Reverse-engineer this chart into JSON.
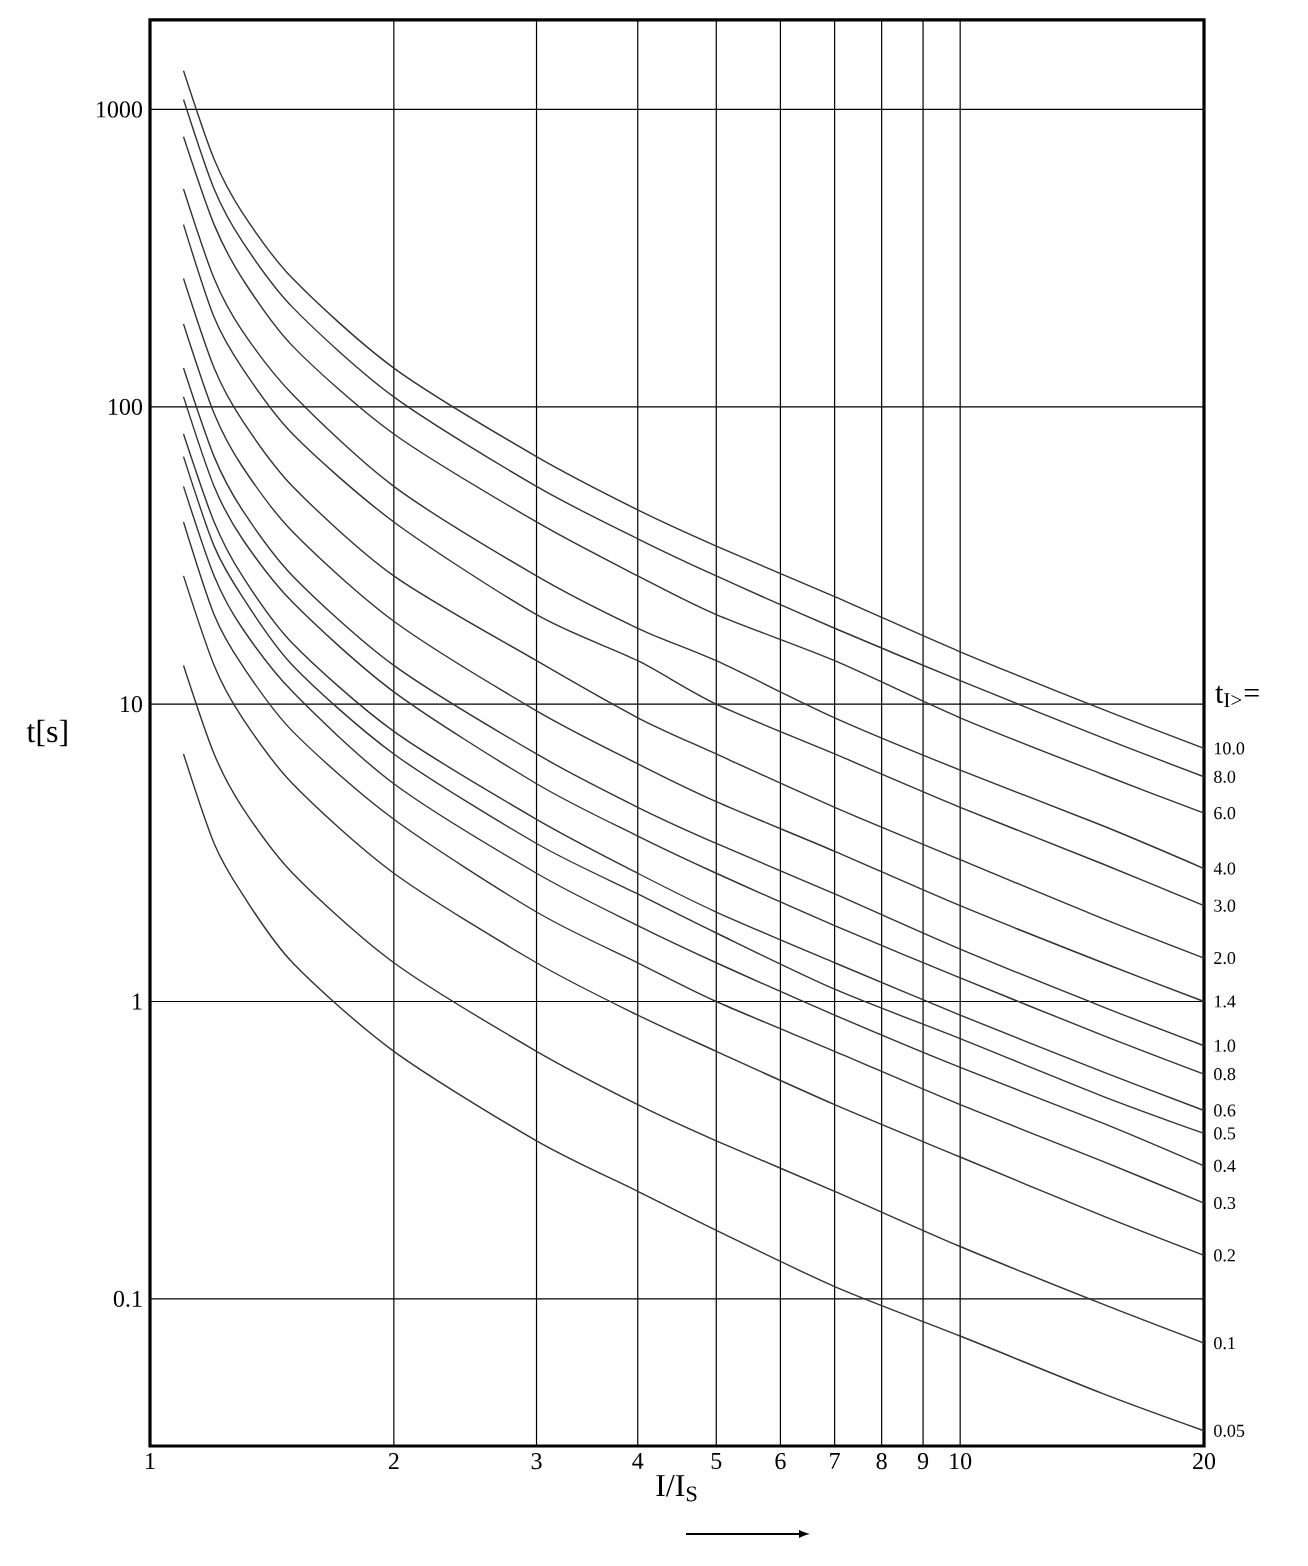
{
  "chart_data": {
    "type": "line",
    "xlabel": "I/I$_{S}$",
    "ylabel": "t[s]",
    "legend_title": "t$_{I>}$=",
    "log": "xy",
    "grid": true,
    "marker": "none",
    "line_style": "solid",
    "legend": false,
    "x": [
      1.1,
      1.2,
      1.3,
      1.5,
      2,
      3,
      4,
      5,
      7,
      10,
      15,
      20
    ],
    "xlim": [
      1,
      20
    ],
    "ylim": [
      0.032,
      2000
    ],
    "xticks": [
      1,
      2,
      3,
      4,
      5,
      6,
      7,
      8,
      9,
      10,
      20
    ],
    "yticks": [
      0.1,
      1,
      10,
      100,
      1000
    ],
    "series": [
      {
        "name": "10.0",
        "color": "#333333",
        "values": [
          1350,
          680,
          450,
          270,
          135,
          68,
          45,
          34,
          23,
          15,
          9.6,
          7.1
        ]
      },
      {
        "name": "8.0",
        "color": "#333333",
        "values": [
          1080,
          540,
          360,
          216,
          108,
          54,
          36,
          27,
          18,
          12,
          7.7,
          5.7
        ]
      },
      {
        "name": "6.0",
        "color": "#333333",
        "values": [
          810,
          410,
          270,
          160,
          81,
          41,
          27,
          20,
          14,
          9.0,
          5.8,
          4.3
        ]
      },
      {
        "name": "4.0",
        "color": "#333333",
        "values": [
          540,
          270,
          180,
          110,
          54,
          27,
          18,
          14,
          9.0,
          6.0,
          3.9,
          2.8
        ]
      },
      {
        "name": "3.0",
        "color": "#333333",
        "values": [
          410,
          200,
          135,
          81,
          41,
          20,
          14,
          10,
          6.8,
          4.5,
          2.9,
          2.1
        ]
      },
      {
        "name": "2.0",
        "color": "#333333",
        "values": [
          270,
          135,
          90,
          54,
          27,
          14,
          9.0,
          6.8,
          4.5,
          3.0,
          1.9,
          1.4
        ]
      },
      {
        "name": "1.4",
        "color": "#333333",
        "values": [
          190,
          95,
          63,
          38,
          19,
          9.5,
          6.3,
          4.7,
          3.2,
          2.1,
          1.35,
          1.0
        ]
      },
      {
        "name": "1.0",
        "color": "#333333",
        "values": [
          135,
          68,
          45,
          27,
          13.5,
          6.8,
          4.5,
          3.4,
          2.3,
          1.5,
          0.96,
          0.71
        ]
      },
      {
        "name": "0.8",
        "color": "#333333",
        "values": [
          108,
          54,
          36,
          22,
          11,
          5.4,
          3.6,
          2.7,
          1.8,
          1.2,
          0.77,
          0.57
        ]
      },
      {
        "name": "0.6",
        "color": "#333333",
        "values": [
          81,
          41,
          27,
          16,
          8.1,
          4.1,
          2.7,
          2.0,
          1.35,
          0.9,
          0.58,
          0.43
        ]
      },
      {
        "name": "0.5",
        "color": "#333333",
        "values": [
          68,
          34,
          23,
          13.5,
          6.8,
          3.4,
          2.3,
          1.7,
          1.1,
          0.75,
          0.48,
          0.36
        ]
      },
      {
        "name": "0.4",
        "color": "#333333",
        "values": [
          54,
          27,
          18,
          11,
          5.4,
          2.7,
          1.8,
          1.35,
          0.9,
          0.6,
          0.39,
          0.28
        ]
      },
      {
        "name": "0.3",
        "color": "#333333",
        "values": [
          41,
          20,
          13.5,
          8.1,
          4.1,
          2.0,
          1.35,
          1.0,
          0.68,
          0.45,
          0.29,
          0.21
        ]
      },
      {
        "name": "0.2",
        "color": "#333333",
        "values": [
          27,
          13.5,
          9.0,
          5.4,
          2.7,
          1.35,
          0.9,
          0.68,
          0.45,
          0.3,
          0.19,
          0.14
        ]
      },
      {
        "name": "0.1",
        "color": "#333333",
        "values": [
          13.5,
          6.8,
          4.5,
          2.7,
          1.35,
          0.68,
          0.45,
          0.34,
          0.23,
          0.15,
          0.096,
          0.071
        ]
      },
      {
        "name": "0.05",
        "color": "#333333",
        "values": [
          6.8,
          3.4,
          2.3,
          1.35,
          0.68,
          0.34,
          0.23,
          0.17,
          0.11,
          0.075,
          0.048,
          0.036
        ]
      }
    ]
  }
}
